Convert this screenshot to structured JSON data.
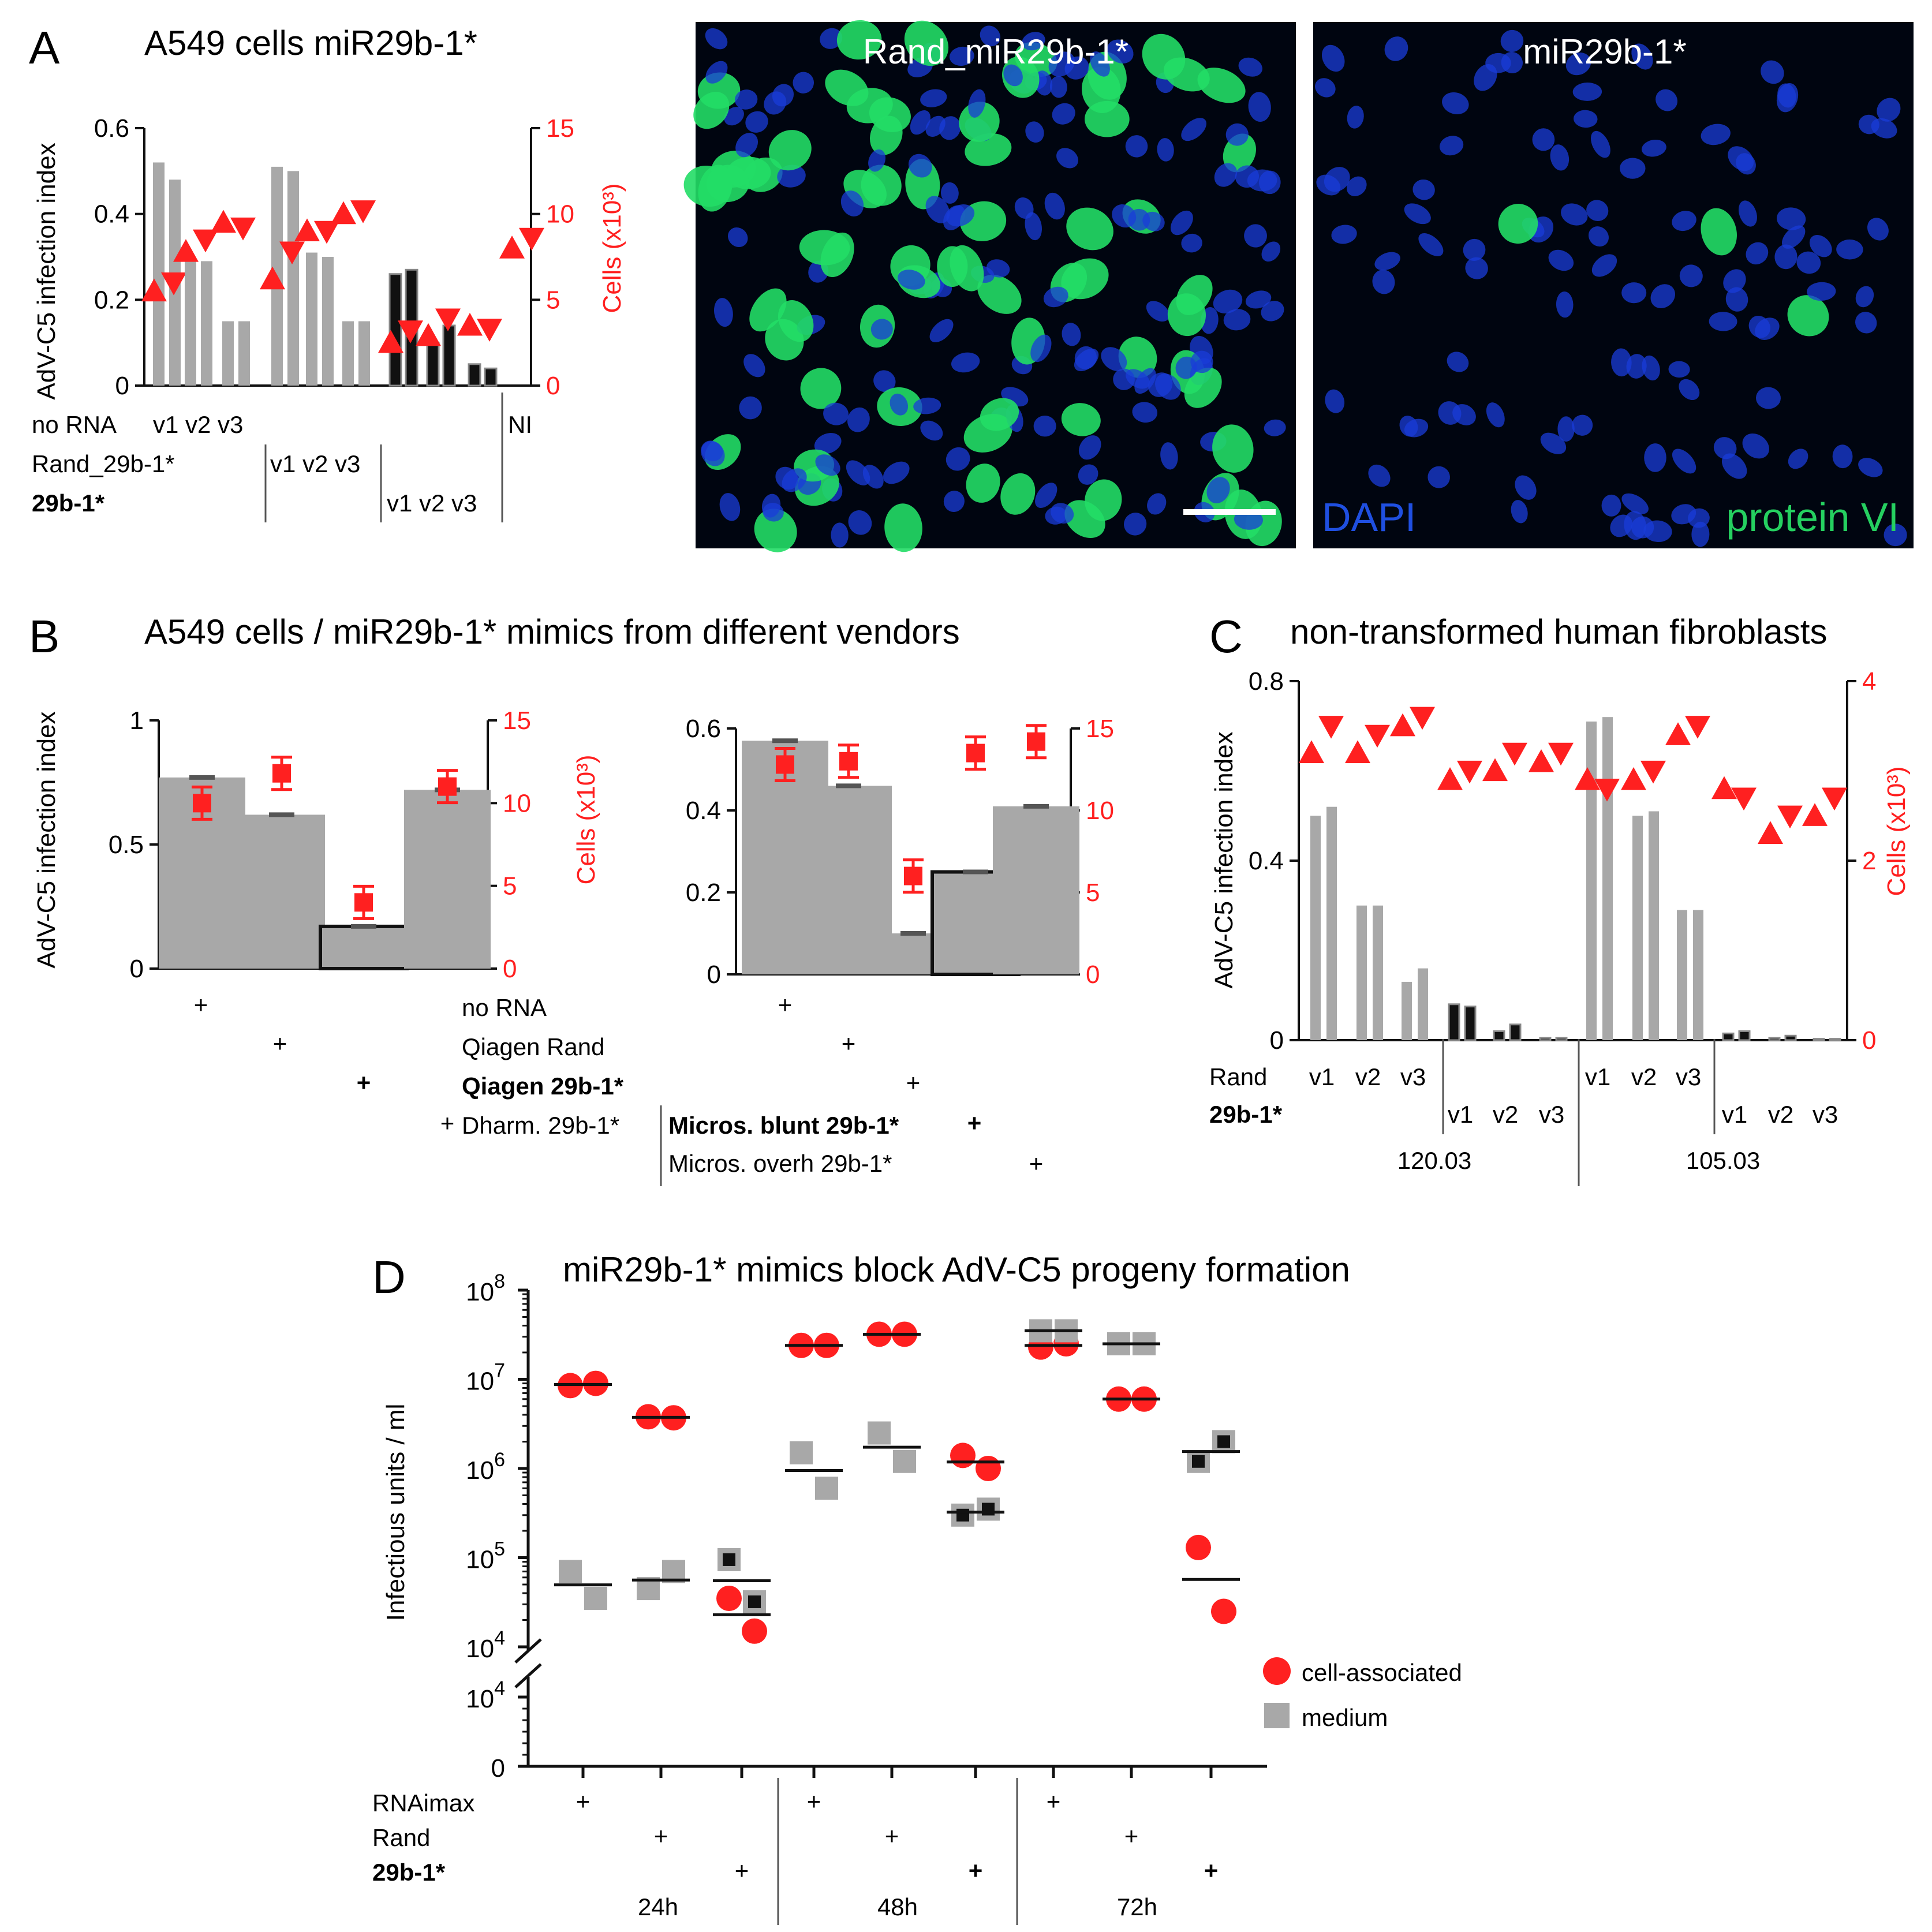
{
  "colors": {
    "red": "#ff2020",
    "gray": "#a8a8a8",
    "black": "#111111",
    "dapi": "#1a3cd8",
    "green": "#22dd66"
  },
  "panelA": {
    "label": "A",
    "title": "A549 cells miR29b-1*",
    "ylabel": "AdV-C5 infection index",
    "ylabel2": "Cells (x10³)",
    "row_labels": [
      "no RNA",
      "Rand_29b-1*",
      "29b-1*"
    ],
    "group_ticks": [
      "v1 v2 v3",
      "v1 v2 v3",
      "v1 v2 v3"
    ],
    "ni_label": "NI",
    "img1_title": "Rand_miR29b-1*",
    "img2_title": "miR29b-1*",
    "dapi_label": "DAPI",
    "protein_label": "protein VI"
  },
  "panelB": {
    "label": "B",
    "title": "A549 cells / miR29b-1* mimics from different vendors",
    "ylabel": "AdV-C5 infection index",
    "ylabel2": "Cells (x10³)",
    "rows": [
      "no RNA",
      "Qiagen Rand",
      "Qiagen 29b-1*",
      "Dharm. 29b-1*",
      "Micros. blunt 29b-1*",
      "Micros. overh 29b-1*"
    ],
    "plus": "+"
  },
  "panelC": {
    "label": "C",
    "title": "non-transformed human fibroblasts",
    "ylabel": "AdV-C5 infection index",
    "ylabel2": "Cells (x10³)",
    "row_rand": "Rand",
    "row_29b": "29b-1*",
    "ticks": [
      "v1",
      "v2",
      "v3"
    ],
    "groups": [
      "120.03",
      "105.03"
    ]
  },
  "panelD": {
    "label": "D",
    "title": "miR29b-1* mimics block AdV-C5 progeny formation",
    "ylabel": "Infectious units / ml",
    "rows": [
      "RNAimax",
      "Rand",
      "29b-1*"
    ],
    "times": [
      "24h",
      "48h",
      "72h"
    ],
    "legend": [
      "cell-associated",
      "medium"
    ],
    "plus": "+"
  },
  "chart_data": [
    {
      "type": "bar",
      "panel": "A",
      "ylim": [
        0,
        0.6
      ],
      "y2lim": [
        0,
        15
      ],
      "yticks": [
        "0",
        "0.2",
        "0.4",
        "0.6"
      ],
      "y2ticks": [
        "0",
        "5",
        "10",
        "15"
      ],
      "categories": [
        "no RNA v1",
        "no RNA v2",
        "no RNA v3",
        "Rand v1",
        "Rand v2",
        "Rand v3",
        "29b-1* v1",
        "29b-1* v2",
        "29b-1* v3",
        "NI"
      ],
      "series": [
        {
          "name": "infection index rep1",
          "values": [
            0.52,
            0.3,
            0.15,
            0.51,
            0.31,
            0.15,
            0.26,
            0.1,
            0.05,
            0
          ]
        },
        {
          "name": "infection index rep2",
          "values": [
            0.48,
            0.29,
            0.15,
            0.5,
            0.3,
            0.15,
            0.27,
            0.14,
            0.04,
            0
          ]
        },
        {
          "name": "cells rep1",
          "values": [
            5.5,
            7.8,
            9.5,
            6.2,
            9.0,
            10.0,
            2.5,
            2.9,
            3.5,
            8.0
          ]
        },
        {
          "name": "cells rep2",
          "values": [
            6.0,
            8.5,
            9.2,
            7.8,
            9.0,
            10.2,
            3.2,
            3.9,
            3.3,
            8.6
          ]
        }
      ]
    },
    {
      "type": "bar",
      "panel": "B-left",
      "ylim": [
        0,
        1
      ],
      "y2lim": [
        0,
        15
      ],
      "yticks": [
        "0",
        "0.5",
        "1"
      ],
      "y2ticks": [
        "0",
        "5",
        "10",
        "15"
      ],
      "categories": [
        "no RNA",
        "Qiagen Rand",
        "Qiagen 29b-1*",
        "Dharm. 29b-1*"
      ],
      "infection": [
        0.77,
        0.62,
        0.17,
        0.72
      ],
      "cells": [
        10.0,
        11.8,
        4.0,
        11.0
      ]
    },
    {
      "type": "bar",
      "panel": "B-right",
      "ylim": [
        0,
        0.6
      ],
      "y2lim": [
        0,
        15
      ],
      "yticks": [
        "0",
        "0.2",
        "0.4",
        "0.6"
      ],
      "y2ticks": [
        "0",
        "5",
        "10",
        "15"
      ],
      "categories": [
        "no RNA",
        "Qiagen Rand",
        "Qiagen 29b-1*",
        "Micros. blunt 29b-1*",
        "Micros. overh 29b-1*"
      ],
      "infection": [
        0.57,
        0.46,
        0.1,
        0.25,
        0.41
      ],
      "cells": [
        12.8,
        13.0,
        6.0,
        13.5,
        14.2
      ]
    },
    {
      "type": "bar",
      "panel": "C",
      "ylim": [
        0,
        0.8
      ],
      "y2lim": [
        0,
        4
      ],
      "yticks": [
        "0",
        "0.4",
        "0.8"
      ],
      "y2ticks": [
        "0",
        "2",
        "4"
      ],
      "categories": [
        "120.03 Rand v1",
        "120.03 Rand v2",
        "120.03 Rand v3",
        "120.03 29b-1* v1",
        "120.03 29b-1* v2",
        "120.03 29b-1* v3",
        "105.03 Rand v1",
        "105.03 Rand v2",
        "105.03 Rand v3",
        "105.03 29b-1* v1",
        "105.03 29b-1* v2",
        "105.03 29b-1* v3"
      ],
      "series": [
        {
          "name": "infection index rep1",
          "values": [
            0.5,
            0.3,
            0.13,
            0.08,
            0.02,
            0.005,
            0.71,
            0.5,
            0.29,
            0.015,
            0.005,
            0.003
          ]
        },
        {
          "name": "infection index rep2",
          "values": [
            0.52,
            0.3,
            0.16,
            0.075,
            0.035,
            0.005,
            0.72,
            0.51,
            0.29,
            0.02,
            0.01,
            0.003
          ]
        },
        {
          "name": "cells rep1",
          "values": [
            3.2,
            3.2,
            3.5,
            2.9,
            3.0,
            3.1,
            2.9,
            2.9,
            3.4,
            2.8,
            2.3,
            2.5
          ]
        },
        {
          "name": "cells rep2",
          "values": [
            3.5,
            3.4,
            3.6,
            3.0,
            3.2,
            3.2,
            2.8,
            3.0,
            3.5,
            2.7,
            2.5,
            2.7
          ]
        }
      ]
    },
    {
      "type": "scatter",
      "panel": "D",
      "yscale": "log",
      "ylim": [
        10000,
        100000000
      ],
      "ytick_exponents": [
        4,
        5,
        6,
        7,
        8
      ],
      "categories": [
        "24h RNAimax",
        "24h Rand",
        "24h 29b-1*",
        "48h RNAimax",
        "48h Rand",
        "48h 29b-1*",
        "72h RNAimax",
        "72h Rand",
        "72h 29b-1*"
      ],
      "series": [
        {
          "name": "cell-associated",
          "values": [
            [
              8500000,
              9000000
            ],
            [
              3800000,
              3700000
            ],
            [
              35000,
              15000
            ],
            [
              24000000,
              24000000
            ],
            [
              32000000,
              32000000
            ],
            [
              1400000,
              1000000
            ],
            [
              23000000,
              25000000
            ],
            [
              6000000,
              6000000
            ],
            [
              130000,
              25000
            ]
          ]
        },
        {
          "name": "medium",
          "values": [
            [
              70000,
              35000
            ],
            [
              45000,
              70000
            ],
            [
              95000,
              32000
            ],
            [
              1500000,
              600000
            ],
            [
              2500000,
              1200000
            ],
            [
              300000,
              350000
            ],
            [
              35000000,
              35000000
            ],
            [
              25000000,
              25000000
            ],
            [
              1200000,
              2000000
            ]
          ]
        }
      ]
    }
  ]
}
